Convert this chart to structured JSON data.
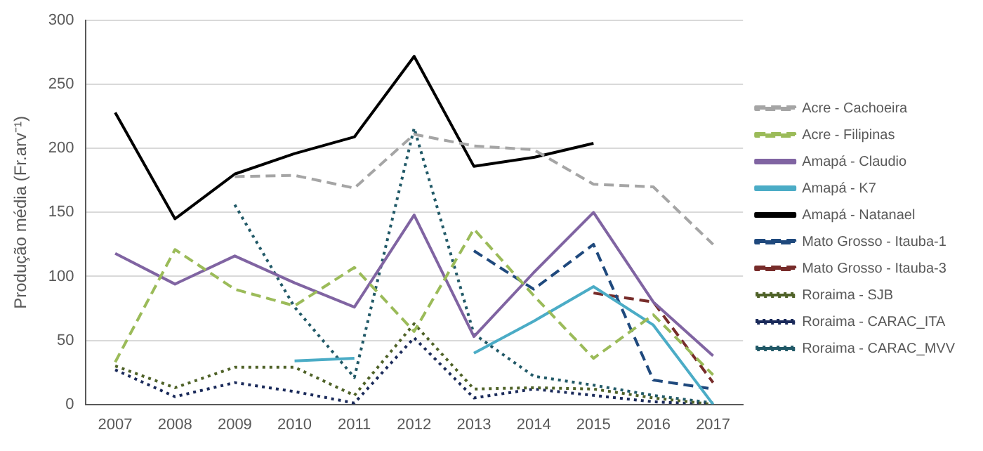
{
  "chart_data": {
    "type": "line",
    "ylabel": "Produção média (Fr.arv⁻¹)",
    "categories": [
      "2007",
      "2008",
      "2009",
      "2010",
      "2011",
      "2012",
      "2013",
      "2014",
      "2015",
      "2016",
      "2017"
    ],
    "ylim": [
      0,
      300
    ],
    "yticks": [
      0,
      50,
      100,
      150,
      200,
      250,
      300
    ],
    "grid": "y",
    "legend": "right",
    "marker": "none",
    "series": [
      {
        "name": "Acre - Cachoeira",
        "color": "#a5a5a5",
        "line_style": "dashed",
        "values": [
          null,
          null,
          178,
          179,
          169,
          211,
          202,
          199,
          172,
          170,
          125
        ]
      },
      {
        "name": "Acre - Filipinas",
        "color": "#9bbb59",
        "line_style": "dashed",
        "values": [
          33,
          121,
          90,
          77,
          107,
          57,
          137,
          85,
          36,
          70,
          23
        ]
      },
      {
        "name": "Amapá - Claudio",
        "color": "#8064a2",
        "line_style": "solid",
        "values": [
          118,
          94,
          116,
          95,
          76,
          148,
          53,
          103,
          150,
          80,
          38
        ]
      },
      {
        "name": "Amapá - K7",
        "color": "#4bacc6",
        "line_style": "solid",
        "values": [
          null,
          null,
          null,
          34,
          36,
          null,
          40,
          65,
          92,
          62,
          0
        ]
      },
      {
        "name": "Amapá - Natanael",
        "color": "#000000",
        "line_style": "solid",
        "values": [
          228,
          145,
          180,
          196,
          209,
          272,
          186,
          193,
          204,
          null,
          null
        ]
      },
      {
        "name": "Mato Grosso - Itauba-1",
        "color": "#1f497d",
        "line_style": "dashed",
        "values": [
          null,
          null,
          null,
          null,
          null,
          null,
          120,
          90,
          125,
          19,
          12
        ]
      },
      {
        "name": "Mato Grosso - Itauba-3",
        "color": "#772c2a",
        "line_style": "dashed",
        "values": [
          null,
          null,
          null,
          null,
          null,
          null,
          null,
          null,
          87,
          80,
          17
        ]
      },
      {
        "name": "Roraima - SJB",
        "color": "#4f6228",
        "line_style": "dotted",
        "values": [
          30,
          13,
          29,
          29,
          7,
          63,
          12,
          13,
          12,
          5,
          0
        ]
      },
      {
        "name": "Roraima - CARAC_ITA",
        "color": "#1a2a5a",
        "line_style": "dotted",
        "values": [
          27,
          6,
          17,
          10,
          1,
          52,
          5,
          12,
          7,
          2,
          0
        ]
      },
      {
        "name": "Roraima - CARAC_MVV",
        "color": "#215967",
        "line_style": "dotted",
        "values": [
          null,
          null,
          156,
          76,
          21,
          216,
          55,
          22,
          15,
          7,
          1
        ]
      }
    ]
  }
}
